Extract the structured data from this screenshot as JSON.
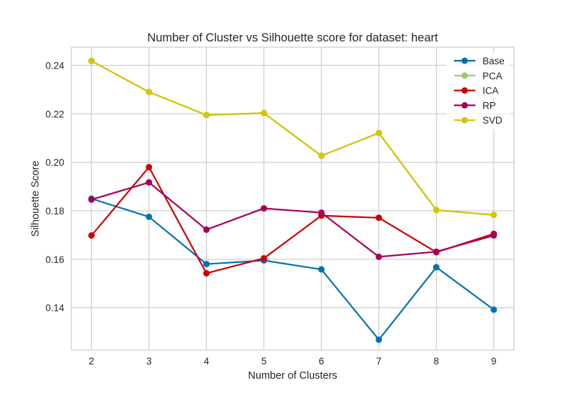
{
  "chart_data": {
    "type": "line",
    "title": "Number of Cluster vs Silhouette score for dataset: heart",
    "xlabel": "Number of Clusters",
    "ylabel": "Silhouette Score",
    "x": [
      2,
      3,
      4,
      5,
      6,
      7,
      8,
      9
    ],
    "xlim": [
      1.65,
      9.35
    ],
    "ylim": [
      0.1225,
      0.2475
    ],
    "yticks": [
      0.14,
      0.16,
      0.18,
      0.2,
      0.22,
      0.24
    ],
    "ytick_labels": [
      "0.14",
      "0.16",
      "0.18",
      "0.20",
      "0.22",
      "0.24"
    ],
    "xtick_labels": [
      "2",
      "3",
      "4",
      "5",
      "6",
      "7",
      "8",
      "9"
    ],
    "grid": true,
    "legend_position": "top-right",
    "series": [
      {
        "name": "Base",
        "color": "#0072b2",
        "values": [
          0.185,
          0.1775,
          0.158,
          0.1595,
          0.1558,
          0.1268,
          0.1567,
          0.1392
        ]
      },
      {
        "name": "PCA",
        "color": "#9ccc65",
        "values": [
          0.2418,
          0.229,
          0.2195,
          0.2203,
          0.2027,
          0.2121,
          0.1803,
          0.1783
        ]
      },
      {
        "name": "ICA",
        "color": "#cc0000",
        "values": [
          0.1698,
          0.198,
          0.1542,
          0.1604,
          0.178,
          0.1771,
          0.1629,
          0.1705
        ]
      },
      {
        "name": "RP",
        "color": "#a6005a",
        "values": [
          0.1846,
          0.1917,
          0.1722,
          0.181,
          0.1792,
          0.161,
          0.1631,
          0.1698
        ]
      },
      {
        "name": "SVD",
        "color": "#d4c40a",
        "values": [
          0.2418,
          0.229,
          0.2195,
          0.2203,
          0.2027,
          0.2121,
          0.1803,
          0.1783
        ]
      }
    ]
  }
}
